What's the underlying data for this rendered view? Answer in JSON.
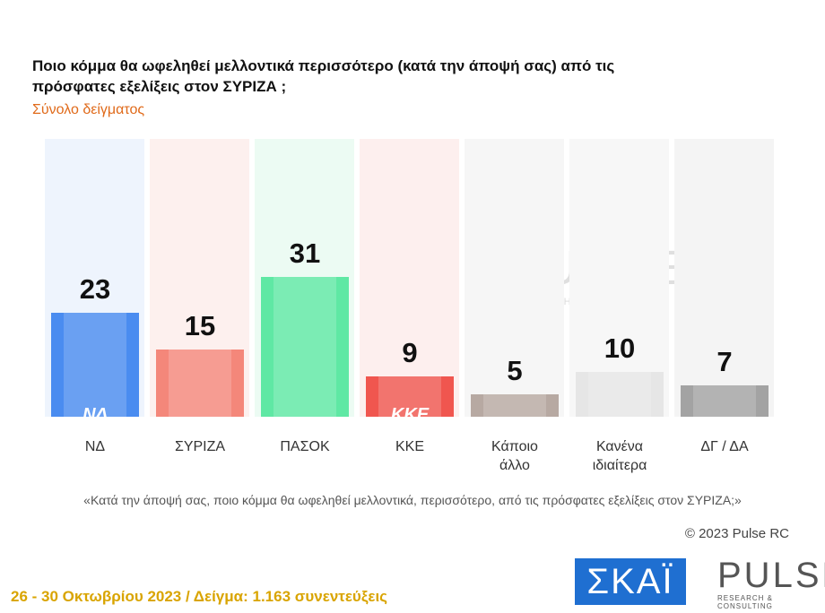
{
  "chart_data": {
    "type": "bar",
    "title": "Ποιο κόμμα θα ωφεληθεί μελλοντικά περισσότερο (κατά την άποψή σας) από τις πρόσφατες εξελίξεις στον ΣΥΡΙΖΑ ;",
    "subtitle": "Σύνολο δείγματος",
    "categories": [
      "ΝΔ",
      "ΣΥΡΙΖΑ",
      "ΠΑΣΟΚ",
      "ΚΚΕ",
      "Κάποιο άλλο",
      "Κανένα ιδιαίτερα",
      "ΔΓ / ΔΑ"
    ],
    "values": [
      23,
      15,
      31,
      9,
      5,
      10,
      7
    ],
    "colors": [
      "#4a8cf0",
      "#f4877a",
      "#5fe8a4",
      "#f0564f",
      "#b7a9a2",
      "#e6e6e6",
      "#a3a3a3"
    ],
    "background_colors": [
      "#eef4fd",
      "#fdf0ee",
      "#ecfbf3",
      "#fdefee",
      "#f6f6f6",
      "#f7f7f7",
      "#f4f4f4"
    ],
    "party_logos": [
      "ΝΔ",
      null,
      null,
      "ΚΚΕ",
      null,
      null,
      null
    ]
  },
  "footer": {
    "question": "«Κατά την άποψή σας, ποιο κόμμα θα ωφεληθεί μελλοντικά, περισσότερο, από τις πρόσφατες εξελίξεις στον ΣΥΡΙΖΑ;»",
    "copyright": "© 2023 Pulse RC",
    "fieldwork": "26 - 30 Οκτωβρίου 2023 / Δείγμα: 1.163 συνεντεύξεις",
    "skai": "ΣΚΑΪ",
    "pulse": "PULSE",
    "pulse_sub": "RESEARCH & CONSULTING"
  }
}
